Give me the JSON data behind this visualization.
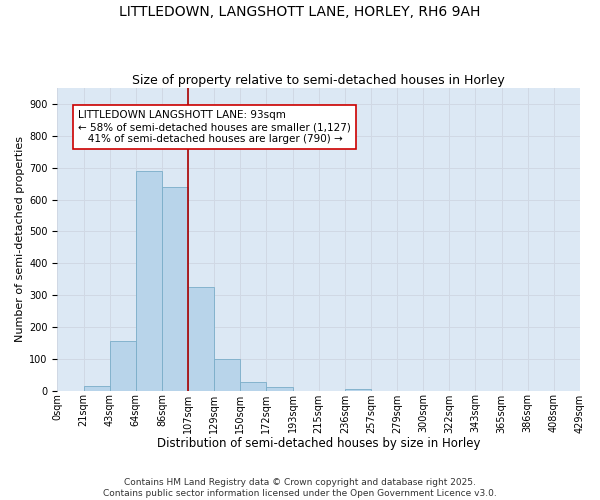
{
  "title": "LITTLEDOWN, LANGSHOTT LANE, HORLEY, RH6 9AH",
  "subtitle": "Size of property relative to semi-detached houses in Horley",
  "xlabel": "Distribution of semi-detached houses by size in Horley",
  "ylabel": "Number of semi-detached properties",
  "bar_values": [
    0,
    15,
    155,
    690,
    640,
    325,
    100,
    28,
    10,
    0,
    0,
    5,
    0,
    0,
    0,
    0,
    0,
    0,
    0,
    0
  ],
  "categories": [
    "0sqm",
    "21sqm",
    "43sqm",
    "64sqm",
    "86sqm",
    "107sqm",
    "129sqm",
    "150sqm",
    "172sqm",
    "193sqm",
    "215sqm",
    "236sqm",
    "257sqm",
    "279sqm",
    "300sqm",
    "322sqm",
    "343sqm",
    "365sqm",
    "386sqm",
    "408sqm",
    "429sqm"
  ],
  "bar_color": "#b8d4ea",
  "bar_edge_color": "#7aadc8",
  "grid_color": "#d0d8e4",
  "background_color": "#dce8f4",
  "vline_x": 4.5,
  "vline_color": "#aa0000",
  "annotation_text": "LITTLEDOWN LANGSHOTT LANE: 93sqm\n← 58% of semi-detached houses are smaller (1,127)\n   41% of semi-detached houses are larger (790) →",
  "annotation_box_color": "#ffffff",
  "annotation_box_edge_color": "#cc0000",
  "footer_text": "Contains HM Land Registry data © Crown copyright and database right 2025.\nContains public sector information licensed under the Open Government Licence v3.0.",
  "ylim": [
    0,
    950
  ],
  "yticks": [
    0,
    100,
    200,
    300,
    400,
    500,
    600,
    700,
    800,
    900
  ],
  "title_fontsize": 10,
  "subtitle_fontsize": 9,
  "xlabel_fontsize": 8.5,
  "ylabel_fontsize": 8,
  "tick_fontsize": 7,
  "footer_fontsize": 6.5,
  "annotation_fontsize": 7.5
}
